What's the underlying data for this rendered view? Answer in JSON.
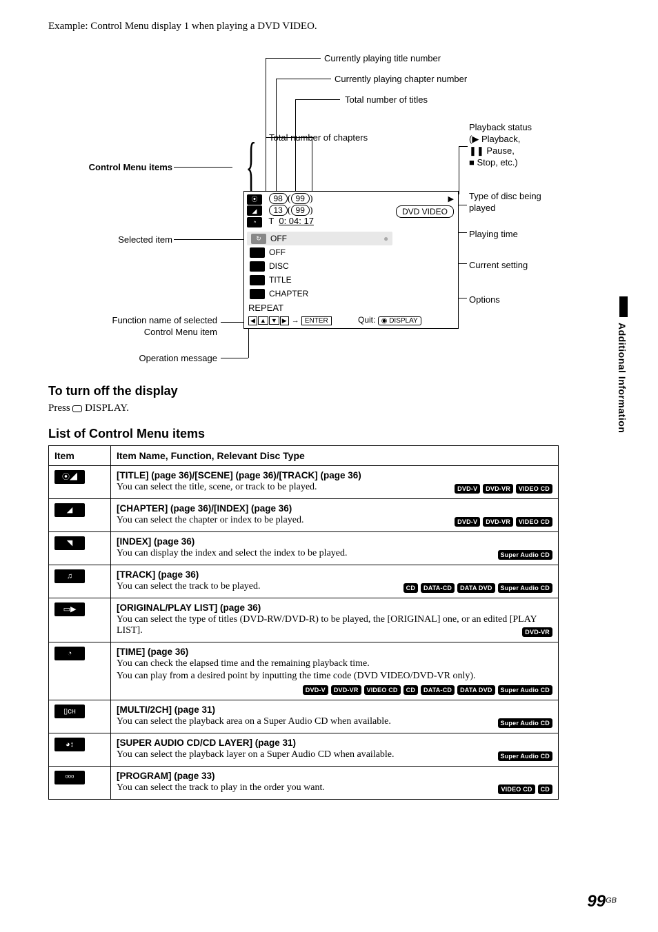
{
  "intro": "Example: Control Menu display 1 when playing a DVD VIDEO.",
  "callouts": {
    "c1": "Currently playing title number",
    "c2": "Currently playing chapter number",
    "c3": "Total number of titles",
    "c4": "Total number of chapters",
    "c5_title": "Playback status",
    "c5_lines": "(▶ Playback,\n❚❚ Pause,\n■ Stop, etc.)",
    "c6": "Type of disc being played",
    "c7": "Playing time",
    "c8": "Current setting",
    "c9": "Options",
    "left_cmi": "Control Menu items",
    "left_sel": "Selected item",
    "left_fn1": "Function name of selected",
    "left_fn2": "Control Menu item",
    "left_op": "Operation message"
  },
  "osd": {
    "title_cur": "98",
    "title_tot": "99",
    "chap_cur": "13",
    "chap_tot": "99",
    "time_prefix": "T",
    "time": "0: 04: 17",
    "disc_type": "DVD VIDEO",
    "row_off1": "OFF",
    "row_off2": "OFF",
    "row_disc": "DISC",
    "row_title": "TITLE",
    "row_chapter": "CHAPTER",
    "repeat": "REPEAT",
    "enter": "ENTER",
    "quit": "Quit:",
    "display": "DISPLAY"
  },
  "sections": {
    "turnoff_head": "To turn off the display",
    "turnoff_body_pre": "Press ",
    "turnoff_body_post": " DISPLAY.",
    "list_head": "List of Control Menu items"
  },
  "table": {
    "col1": "Item",
    "col2": "Item Name, Function, Relevant Disc Type",
    "rows": [
      {
        "icon": "⦿◢",
        "title": "[TITLE] (page 36)/[SCENE] (page 36)/[TRACK] (page 36)",
        "desc": "You can select the title, scene, or track to be played.",
        "badges": [
          "DVD-V",
          "DVD-VR",
          "VIDEO CD"
        ]
      },
      {
        "icon": "◢",
        "title": "[CHAPTER] (page 36)/[INDEX] (page 36)",
        "desc": "You can select the chapter or index to be played.",
        "badges": [
          "DVD-V",
          "DVD-VR",
          "VIDEO CD"
        ]
      },
      {
        "icon": "◥",
        "title": "[INDEX] (page 36)",
        "desc": "You can display the index and select the index to be played.",
        "badges": [
          "Super Audio CD"
        ]
      },
      {
        "icon": "♫",
        "title": "[TRACK] (page 36)",
        "desc": "You can select the track to be played.",
        "badges": [
          "CD",
          "DATA-CD",
          "DATA DVD",
          "Super Audio CD"
        ]
      },
      {
        "icon": "▭▶",
        "title": "[ORIGINAL/PLAY LIST] (page 36)",
        "desc": "You can select the type of titles (DVD-RW/DVD-R) to be played, the [ORIGINAL] one, or an edited [PLAY LIST].",
        "badges": [
          "DVD-VR"
        ]
      },
      {
        "icon": "◔",
        "title": "[TIME] (page 36)",
        "desc": "You can check the elapsed time and the remaining playback time.",
        "desc2": "You can play from a desired point by inputting the time code (DVD VIDEO/DVD-VR only).",
        "badges": [
          "DVD-V",
          "DVD-VR",
          "VIDEO CD",
          "CD",
          "DATA-CD",
          "DATA DVD",
          "Super Audio CD"
        ]
      },
      {
        "icon": "▯ᴄʜ",
        "title": "[MULTI/2CH] (page 31)",
        "desc": "You can select the playback area on a Super Audio CD when available.",
        "badges": [
          "Super Audio CD"
        ]
      },
      {
        "icon": "◕↕",
        "title": "[SUPER AUDIO CD/CD LAYER] (page 31)",
        "desc": "You can select the playback layer on a Super Audio CD when available.",
        "badges": [
          "Super Audio CD"
        ]
      },
      {
        "icon": "ᵒᵒᵒ",
        "title": "[PROGRAM] (page 33)",
        "desc": "You can select the track to play in the order you want.",
        "badges": [
          "VIDEO CD",
          "CD"
        ]
      }
    ]
  },
  "sidebar": "Additional Information",
  "page": {
    "num": "99",
    "suffix": "GB"
  },
  "colors": {
    "bg": "#ffffff",
    "fg": "#000000"
  }
}
